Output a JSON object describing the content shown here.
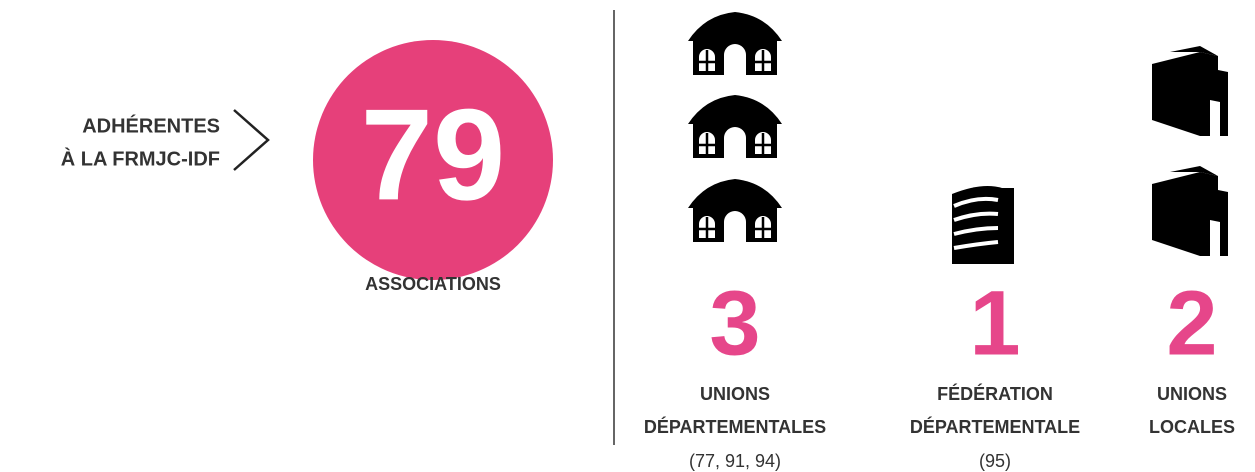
{
  "left": {
    "caption": [
      "ADHÉRENTES",
      "À LA FRMJC-IDF"
    ],
    "number": 79,
    "label": "ASSOCIATIONS"
  },
  "columns": [
    {
      "number": 3,
      "label": [
        "UNIONS",
        "DÉPARTEMENTALES"
      ],
      "note": "(77, 91, 94)"
    },
    {
      "number": 1,
      "label": [
        "FÉDÉRATION",
        "DÉPARTEMENTALE"
      ],
      "note": "(95)"
    },
    {
      "number": 2,
      "label": [
        "UNIONS",
        "LOCALES"
      ]
    }
  ]
}
